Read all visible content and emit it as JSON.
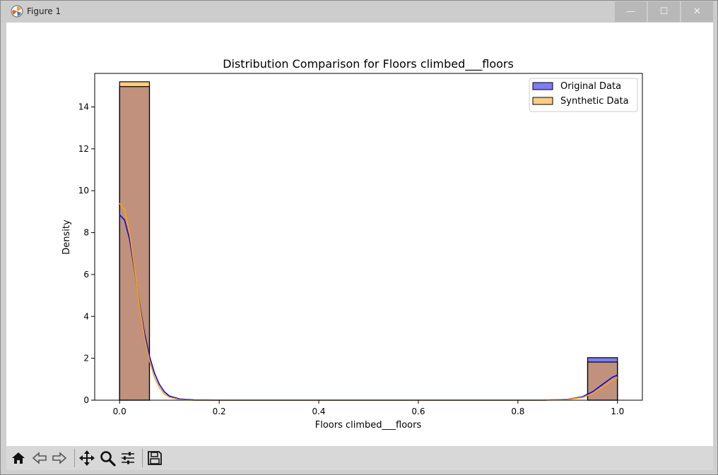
{
  "window": {
    "title": "Figure 1",
    "controls": {
      "minimize": "—",
      "maximize": "☐",
      "close": "✕"
    }
  },
  "toolbar": {
    "icons": [
      "home-icon",
      "back-icon",
      "forward-icon",
      "pan-icon",
      "zoom-icon",
      "configure-subplots-icon",
      "save-icon"
    ]
  },
  "colors": {
    "original": "#0000ff",
    "synthetic": "#ffa500",
    "original_fill": "#7d7df5",
    "synthetic_fill": "#ffcd80",
    "overlap_fill": "#c0917c"
  },
  "chart_data": {
    "type": "bar",
    "title": "Distribution Comparison for Floors climbed___floors",
    "xlabel": "Floors climbed___floors",
    "ylabel": "Density",
    "xlim": [
      -0.05,
      1.05
    ],
    "ylim": [
      0,
      15.6
    ],
    "xticks": [
      "0.0",
      "0.2",
      "0.4",
      "0.6",
      "0.8",
      "1.0"
    ],
    "yticks": [
      "0",
      "2",
      "4",
      "6",
      "8",
      "10",
      "12",
      "14"
    ],
    "legend": {
      "position": "top-right",
      "entries": [
        "Original Data",
        "Synthetic Data"
      ]
    },
    "bin_width": 0.06,
    "series": [
      {
        "name": "Original Data",
        "bars": [
          {
            "x": 0.0,
            "value": 14.97
          },
          {
            "x": 0.94,
            "value": 2.03
          }
        ],
        "kde": {
          "x": [
            0.0,
            0.01,
            0.02,
            0.03,
            0.04,
            0.05,
            0.06,
            0.07,
            0.08,
            0.09,
            0.1,
            0.12,
            0.15,
            0.2,
            0.5,
            0.85,
            0.9,
            0.93,
            0.95,
            0.97,
            0.99,
            1.0
          ],
          "y": [
            8.85,
            8.6,
            7.7,
            6.2,
            4.6,
            3.2,
            2.1,
            1.3,
            0.75,
            0.4,
            0.2,
            0.06,
            0.01,
            0.0,
            0.0,
            0.0,
            0.04,
            0.17,
            0.4,
            0.75,
            1.1,
            1.2
          ]
        }
      },
      {
        "name": "Synthetic Data",
        "bars": [
          {
            "x": 0.0,
            "value": 15.2
          },
          {
            "x": 0.94,
            "value": 1.82
          }
        ],
        "kde": {
          "x": [
            0.0,
            0.01,
            0.02,
            0.03,
            0.04,
            0.05,
            0.06,
            0.07,
            0.08,
            0.09,
            0.1,
            0.12,
            0.15,
            0.2,
            0.5,
            0.85,
            0.9,
            0.93,
            0.95,
            0.97,
            0.99,
            1.0
          ],
          "y": [
            9.4,
            9.1,
            8.0,
            6.3,
            4.5,
            3.0,
            1.9,
            1.1,
            0.6,
            0.3,
            0.14,
            0.03,
            0.0,
            0.0,
            0.0,
            0.0,
            0.03,
            0.13,
            0.32,
            0.62,
            0.95,
            1.07
          ]
        }
      }
    ]
  }
}
